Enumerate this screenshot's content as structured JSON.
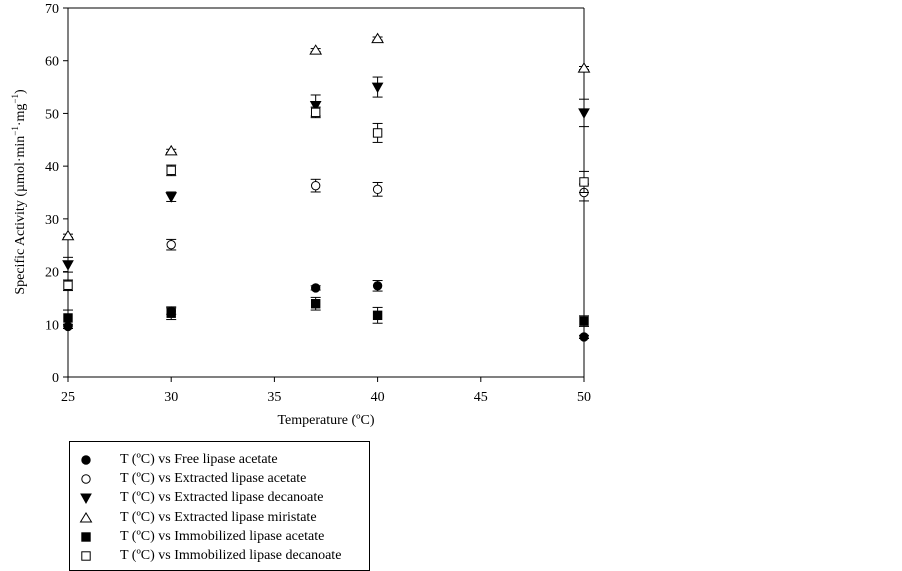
{
  "chart_data": {
    "type": "scatter",
    "title": "",
    "xlabel": "Temperature (ºC)",
    "ylabel_parts": [
      "Specific Activity (µmol·min",
      "−1",
      "·mg",
      "−1",
      ")"
    ],
    "ylabel": "Specific Activity (µmol·min⁻¹·mg⁻¹)",
    "xlim": [
      25,
      50
    ],
    "ylim": [
      0,
      70
    ],
    "xticks": [
      "25",
      "30",
      "35",
      "40",
      "45",
      "50"
    ],
    "yticks": [
      "0",
      "10",
      "20",
      "30",
      "40",
      "50",
      "60",
      "70"
    ],
    "grid": false,
    "legend_position": "bottom-left, below plot",
    "series": [
      {
        "name": "T (ºC) vs Free lipase acetate",
        "marker": "filled-circle",
        "x": [
          25,
          30,
          37,
          40,
          50
        ],
        "y": [
          9.6,
          12.5,
          16.9,
          17.3,
          7.6
        ],
        "err": [
          0.4,
          0.6,
          0.4,
          1.0,
          0.3
        ]
      },
      {
        "name": "T (ºC) vs Extracted lipase acetate",
        "marker": "open-circle",
        "x": [
          30,
          37,
          40,
          50
        ],
        "y": [
          25.1,
          36.3,
          35.6,
          35.0
        ],
        "err": [
          1.0,
          1.2,
          1.3,
          1.6
        ]
      },
      {
        "name": "T (ºC) vs Extracted lipase decanoate",
        "marker": "filled-triangle-down",
        "x": [
          25,
          30,
          37,
          40,
          50
        ],
        "y": [
          21.3,
          34.2,
          51.5,
          55.0,
          50.1
        ],
        "err": [
          1.4,
          0.9,
          2.0,
          1.9,
          2.6
        ]
      },
      {
        "name": "T (ºC) vs Extracted lipase miristate",
        "marker": "open-triangle-up",
        "x": [
          25,
          30,
          37,
          40,
          50
        ],
        "y": [
          26.8,
          42.9,
          62.0,
          64.2,
          58.6
        ],
        "err": [
          0.3,
          0.3,
          0.3,
          0.3,
          0.3
        ]
      },
      {
        "name": "T (ºC) vs Immobilized lipase acetate",
        "marker": "filled-square",
        "x": [
          25,
          30,
          37,
          40,
          50
        ],
        "y": [
          11.2,
          12.1,
          13.9,
          11.7,
          10.6
        ],
        "err": [
          1.5,
          1.2,
          1.2,
          1.5,
          1.0
        ]
      },
      {
        "name": "T (ºC) vs Immobilized lipase decanoate",
        "marker": "open-square",
        "x": [
          25,
          30,
          37,
          40,
          50
        ],
        "y": [
          17.4,
          39.2,
          50.2,
          46.3,
          37.0
        ],
        "err": [
          1.0,
          1.0,
          1.0,
          1.8,
          2.0
        ]
      }
    ]
  }
}
